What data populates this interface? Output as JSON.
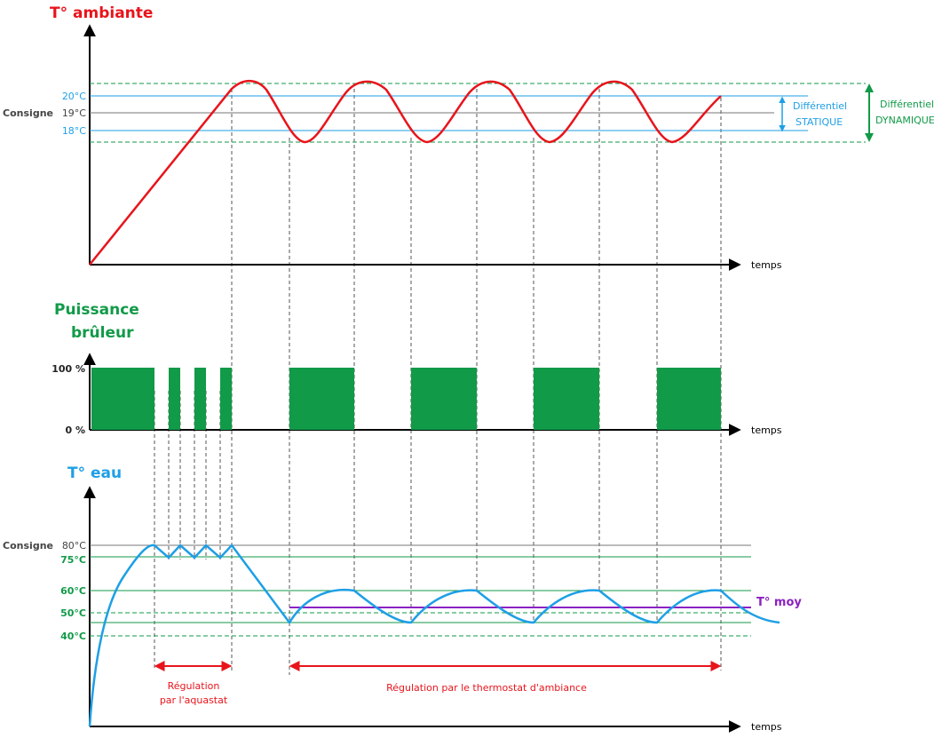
{
  "colors": {
    "red": "#e8141b",
    "green": "#119a48",
    "blue": "#1e9fe6",
    "purple": "#8a22c2",
    "dark": "#444444",
    "axis": "#000000",
    "dash": "#555555"
  },
  "panels": {
    "ambient": {
      "title": "T° ambiante",
      "x_label": "temps",
      "label_20": "20°C",
      "label_consigne": "Consigne",
      "label_19": "19°C",
      "label_18": "18°C",
      "static_diff": {
        "line1": "Différentiel",
        "line2": "STATIQUE"
      },
      "dynamic_diff": {
        "line1": "Différentiel",
        "line2": "DYNAMIQUE"
      }
    },
    "burner": {
      "title_line1": "Puissance",
      "title_line2": "brûleur",
      "x_label": "temps",
      "label_100": "100 %",
      "label_0": "0 %"
    },
    "water": {
      "title": "T° eau",
      "x_label": "temps",
      "label_consigne": "Consigne",
      "label_80": "80°C",
      "label_75": "75°C",
      "label_60": "60°C",
      "label_50": "50°C",
      "label_40": "40°C",
      "avg_label": "T° moy",
      "regulation_aquastat": {
        "line1": "Régulation",
        "line2": "par  l'aquastat"
      },
      "regulation_thermostat": "Régulation  par  le  thermostat  d'ambiance"
    }
  }
}
